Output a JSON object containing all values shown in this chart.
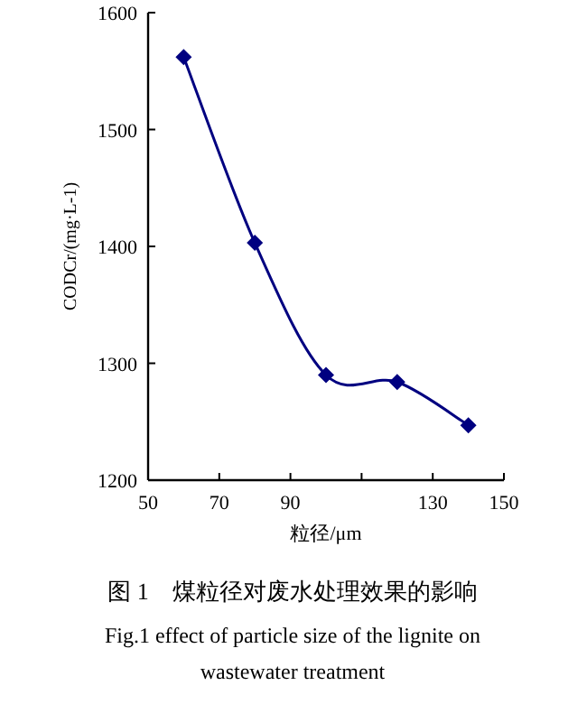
{
  "chart_data": {
    "type": "line",
    "title": "图 1　煤粒径对废水处理效果的影响",
    "subtitle": "Fig.1 effect of particle size of the lignite on wastewater treatment",
    "xlabel": "粒径/μm",
    "ylabel": "CODCr/(mg·L-1)",
    "x": [
      60,
      80,
      100,
      120,
      140
    ],
    "series": [
      {
        "color": "#000080",
        "values": [
          1562,
          1403,
          1290,
          1284,
          1247
        ]
      }
    ],
    "xlim": [
      50,
      150
    ],
    "xticks": [
      50,
      70,
      90,
      {
        "value": 110,
        "label": null
      },
      130,
      150
    ],
    "ylim": [
      1200,
      1600
    ],
    "yticks": [
      1200,
      1300,
      1400,
      1500,
      1600
    ],
    "marker": "diamond",
    "line_style": "solid",
    "grid": false
  }
}
